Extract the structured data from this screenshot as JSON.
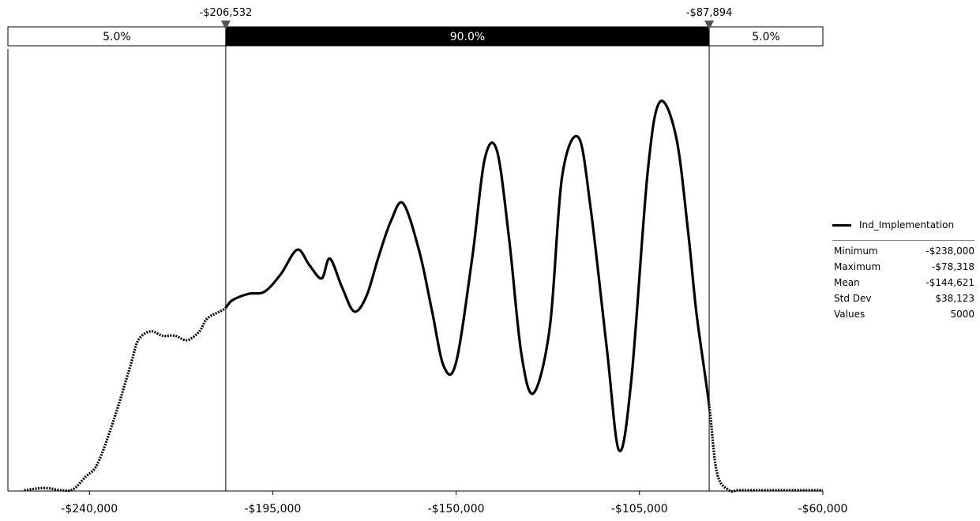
{
  "chart_data": {
    "type": "line",
    "series": [
      {
        "name": "Ind_Implementation",
        "x": [
          -256000,
          -251000,
          -247000,
          -244000,
          -241000,
          -238000,
          -234000,
          -230000,
          -228000,
          -225000,
          -222000,
          -219000,
          -216000,
          -213000,
          -211000,
          -207000,
          -205000,
          -201000,
          -197000,
          -193000,
          -189000,
          -186000,
          -183000,
          -181000,
          -178000,
          -175000,
          -172000,
          -169000,
          -166000,
          -163000,
          -159000,
          -156000,
          -153000,
          -150000,
          -146000,
          -143000,
          -140000,
          -137000,
          -134000,
          -131000,
          -127000,
          -124000,
          -120000,
          -117000,
          -113000,
          -110000,
          -107000,
          -103000,
          -100000,
          -96000,
          -93000,
          -91000,
          -88000,
          -86000,
          -83000,
          -81000,
          -79000,
          -76000,
          -73000,
          -70000,
          -60000
        ],
        "y": [
          0.0,
          0.5,
          0.0,
          0.2,
          3.0,
          6.0,
          16.0,
          28.0,
          34.0,
          36.0,
          35.0,
          35.0,
          34.0,
          36.0,
          39.0,
          41.0,
          43.0,
          44.5,
          45.0,
          49.0,
          54.5,
          51.0,
          48.0,
          52.5,
          46.0,
          40.5,
          44.0,
          53.0,
          61.0,
          65.0,
          54.0,
          41.0,
          28.0,
          29.0,
          53.0,
          75.0,
          77.0,
          57.0,
          31.0,
          22.0,
          37.0,
          71.0,
          80.0,
          64.0,
          32.0,
          9.0,
          25.0,
          72.0,
          88.0,
          80.0,
          58.0,
          40.0,
          20.0,
          4.0,
          0.0,
          0.0,
          0.0,
          0.0,
          0.0,
          0.0,
          0.0
        ],
        "color": "#000000"
      }
    ],
    "xlim": [
      -260000,
      -60000
    ],
    "ylim": [
      0,
      100
    ],
    "x_ticks": [
      -240000,
      -195000,
      -150000,
      -105000,
      -60000
    ],
    "x_tick_labels": [
      "-$240,000",
      "-$195,000",
      "-$150,000",
      "-$105,000",
      "-$60,000"
    ],
    "delimiters": {
      "left_value": -206532,
      "right_value": -87894,
      "left_label": "-$206,532",
      "right_label": "-$87,894",
      "left_pct": "5.0%",
      "middle_pct": "90.0%",
      "right_pct": "5.0%"
    },
    "grid": false,
    "legend_position": "right",
    "stats": {
      "rows": [
        {
          "label": "Minimum",
          "value": "-$238,000"
        },
        {
          "label": "Maximum",
          "value": "-$78,318"
        },
        {
          "label": "Mean",
          "value": "-$144,621"
        },
        {
          "label": "Std Dev",
          "value": "$38,123"
        },
        {
          "label": "Values",
          "value": "5000"
        }
      ]
    }
  }
}
